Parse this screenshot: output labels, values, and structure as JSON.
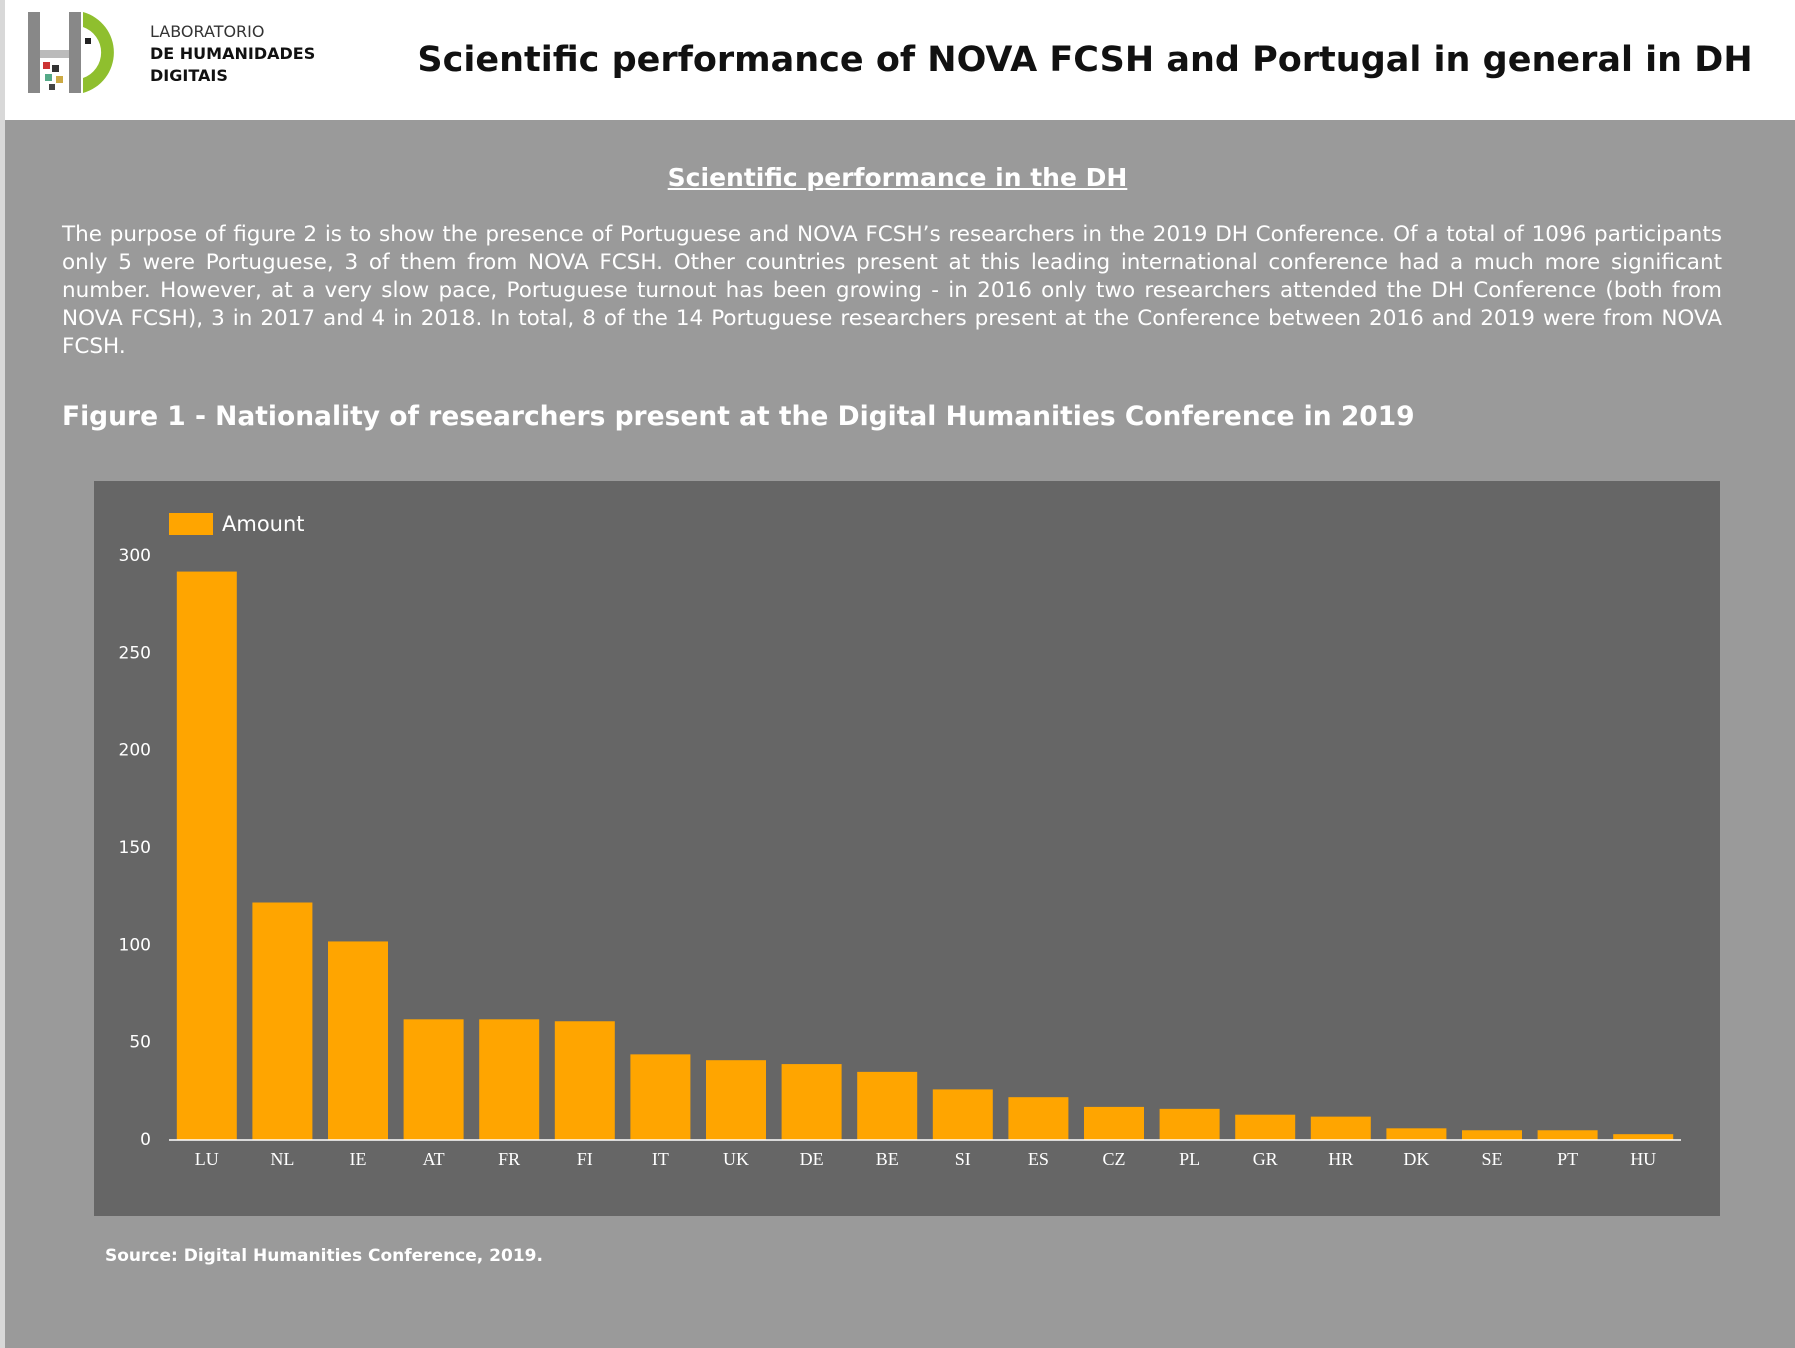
{
  "header": {
    "title": "Scientific performance of NOVA FCSH and Portugal in general in DH",
    "logo_lines": [
      "LABORATORIO",
      "DE HUMANIDADES",
      "DIGITAIS"
    ]
  },
  "section_heading": "Scientific performance in the DH",
  "paragraph": "The purpose of figure 2 is to show the presence of Portuguese and NOVA FCSH’s researchers in the 2019 DH Conference. Of a total of 1096 participants only 5 were Portuguese, 3 of them from NOVA FCSH. Other countries present at this leading international conference had a much more significant number. However, at a very slow pace, Portuguese turnout has been growing - in 2016 only two researchers attended the DH Conference (both from NOVA FCSH), 3 in 2017 and 4 in 2018. In total, 8 of the 14 Portuguese researchers present at the Conference between 2016 and 2019 were from NOVA FCSH.",
  "figure_title": "Figure 1 - Nationality of researchers present at the Digital Humanities Conference in 2019",
  "chart_data": {
    "type": "bar",
    "categories": [
      "LU",
      "NL",
      "IE",
      "AT",
      "FR",
      "FI",
      "IT",
      "UK",
      "DE",
      "BE",
      "SI",
      "ES",
      "CZ",
      "PL",
      "GR",
      "HR",
      "DK",
      "SE",
      "PT",
      "HU"
    ],
    "series": [
      {
        "name": "Amount",
        "color": "#ffa500",
        "values": [
          292,
          122,
          102,
          62,
          62,
          61,
          44,
          41,
          39,
          35,
          26,
          22,
          17,
          16,
          13,
          12,
          6,
          5,
          5,
          3
        ]
      }
    ],
    "ylim": [
      0,
      300
    ],
    "yticks": [
      0,
      50,
      100,
      150,
      200,
      250,
      300
    ],
    "legend": "top-left"
  },
  "source": "Source: Digital Humanities Conference, 2019."
}
